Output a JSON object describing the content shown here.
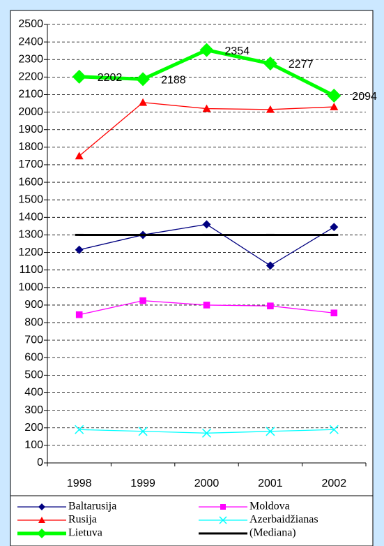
{
  "chart_data": {
    "type": "line",
    "categories": [
      "1998",
      "1999",
      "2000",
      "2001",
      "2002"
    ],
    "ylim": [
      0,
      2500
    ],
    "yticks": [
      0,
      100,
      200,
      300,
      400,
      500,
      600,
      700,
      800,
      900,
      1000,
      1100,
      1200,
      1300,
      1400,
      1500,
      1600,
      1700,
      1800,
      1900,
      2000,
      2100,
      2200,
      2300,
      2400,
      2500
    ],
    "grid": true,
    "legend": "bottom",
    "series": [
      {
        "name": "Baltarusija",
        "color": "#000080",
        "marker": "diamond",
        "values": [
          1215,
          1300,
          1360,
          1125,
          1345
        ]
      },
      {
        "name": "Rusija",
        "color": "#ff0000",
        "marker": "triangle",
        "values": [
          1750,
          2055,
          2020,
          2015,
          2030
        ]
      },
      {
        "name": "Lietuva",
        "color": "#00ff00",
        "marker": "diamond",
        "width": 5,
        "show_labels": true,
        "values": [
          2202,
          2188,
          2354,
          2277,
          2094
        ]
      },
      {
        "name": "Moldova",
        "color": "#ff00ff",
        "marker": "square",
        "values": [
          845,
          925,
          900,
          895,
          855
        ]
      },
      {
        "name": "Azerbaidžianas",
        "color": "#00ffff",
        "marker": "x",
        "values": [
          190,
          180,
          170,
          180,
          190
        ]
      },
      {
        "name": "(Mediana)",
        "color": "#000000",
        "marker": "dash",
        "width": 3,
        "values": [
          1300,
          1300,
          1300,
          1300,
          1300
        ]
      }
    ]
  }
}
